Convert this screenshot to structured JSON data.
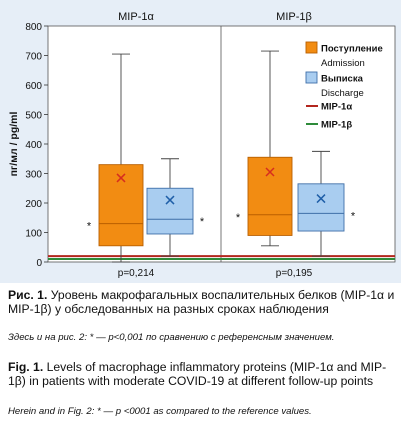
{
  "chart_data": {
    "type": "box",
    "panels": [
      "MIP-1α",
      "MIP-1β"
    ],
    "ylabel": "пг/мл / pg/ml",
    "ylim": [
      0,
      800
    ],
    "yticks": [
      0,
      100,
      200,
      300,
      400,
      500,
      600,
      700,
      800
    ],
    "grid": false,
    "legend_position": "top-right",
    "series": [
      {
        "name_ru": "Поступление",
        "name_en": "Admission",
        "color": "#f28c12",
        "stroke": "#b95f00"
      },
      {
        "name_ru": "Выписка",
        "name_en": "Discharge",
        "color": "#a9cdf0",
        "stroke": "#3f6fa8"
      }
    ],
    "reference_lines": [
      {
        "name": "MIP-1α",
        "value": 20,
        "color": "#b3261e"
      },
      {
        "name": "MIP-1β",
        "value": 10,
        "color": "#2e8b3a"
      }
    ],
    "boxes": [
      {
        "panel": "MIP-1α",
        "series": "Поступление",
        "min": 0,
        "q1": 55,
        "median": 130,
        "q3": 330,
        "max": 705,
        "mean": 285,
        "significance": "*"
      },
      {
        "panel": "MIP-1α",
        "series": "Выписка",
        "min": 20,
        "q1": 95,
        "median": 145,
        "q3": 250,
        "max": 350,
        "mean": 210,
        "significance": "*"
      },
      {
        "panel": "MIP-1β",
        "series": "Поступление",
        "min": 55,
        "q1": 90,
        "median": 160,
        "q3": 355,
        "max": 715,
        "mean": 305,
        "significance": "*"
      },
      {
        "panel": "MIP-1β",
        "series": "Выписка",
        "min": 20,
        "q1": 105,
        "median": 165,
        "q3": 265,
        "max": 375,
        "mean": 215,
        "significance": "*"
      }
    ],
    "p_values": [
      "p=0,214",
      "p=0,195"
    ]
  },
  "caption": {
    "ru_label": "Рис. 1.",
    "ru_text": " Уровень макрофагальных воспалительных белков (MIP-1α и MIP-1β) у обследованных на разных сроках наблюдения",
    "ru_note": "Здесь и на рис. 2: * — p<0,001 по сравнению с референсным значением.",
    "en_label": "Fig. 1.",
    "en_text": " Levels of macrophage inflammatory proteins (MIP-1α and MIP-1β) in patients with moderate COVID-19 at different follow-up points",
    "en_note": "Herein and in Fig. 2: * — p <0001 as compared to the reference values."
  }
}
